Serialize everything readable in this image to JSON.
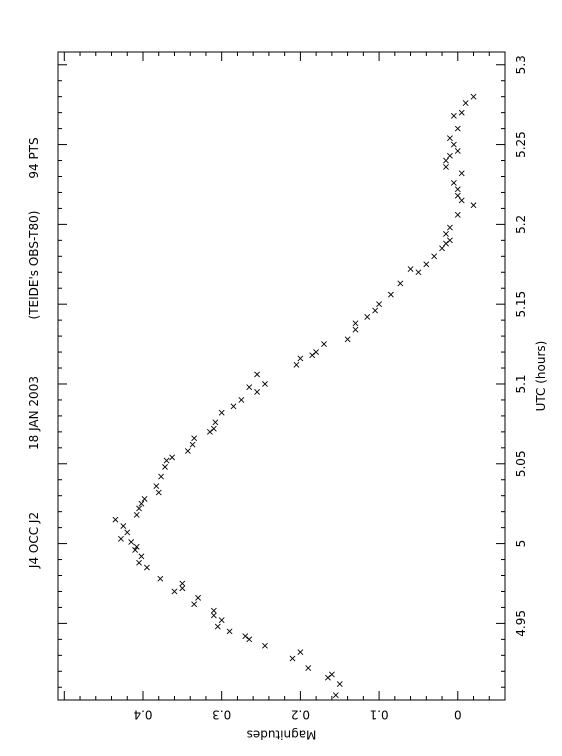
{
  "chart_data": {
    "type": "scatter",
    "orientation": "rotated-90",
    "header_labels": [
      "J4 OCC J2",
      "18 JAN 2003",
      "(TEIDE's OBS-T80)",
      "94 PTS"
    ],
    "xlabel": "UTC (hours)",
    "ylabel": "Magnitudes",
    "x_range": [
      4.902,
      5.308
    ],
    "y_range": [
      0.508,
      -0.06
    ],
    "x_ticks": [
      "4.95",
      "5",
      "5.05",
      "5.1",
      "5.15",
      "5.2",
      "5.25",
      "5.3"
    ],
    "y_ticks": [
      "0.4",
      "0.3",
      "0.2",
      "0.1",
      "0"
    ],
    "x_tick_values": [
      4.95,
      5.0,
      5.05,
      5.1,
      5.15,
      5.2,
      5.25,
      5.3
    ],
    "y_tick_values": [
      0.4,
      0.3,
      0.2,
      0.1,
      0.0
    ],
    "marker": "x",
    "grid": false,
    "series": [
      {
        "points": [
          [
            4.905,
            0.155
          ],
          [
            4.912,
            0.15
          ],
          [
            4.916,
            0.165
          ],
          [
            4.918,
            0.16
          ],
          [
            4.922,
            0.19
          ],
          [
            4.928,
            0.21
          ],
          [
            4.932,
            0.2
          ],
          [
            4.936,
            0.245
          ],
          [
            4.94,
            0.265
          ],
          [
            4.942,
            0.27
          ],
          [
            4.945,
            0.29
          ],
          [
            4.948,
            0.305
          ],
          [
            4.952,
            0.3
          ],
          [
            4.955,
            0.31
          ],
          [
            4.958,
            0.31
          ],
          [
            4.962,
            0.335
          ],
          [
            4.966,
            0.33
          ],
          [
            4.97,
            0.36
          ],
          [
            4.972,
            0.35
          ],
          [
            4.975,
            0.35
          ],
          [
            4.978,
            0.378
          ],
          [
            4.985,
            0.395
          ],
          [
            4.988,
            0.405
          ],
          [
            4.992,
            0.402
          ],
          [
            4.996,
            0.41
          ],
          [
            4.998,
            0.408
          ],
          [
            5.001,
            0.415
          ],
          [
            5.003,
            0.428
          ],
          [
            5.007,
            0.42
          ],
          [
            5.011,
            0.425
          ],
          [
            5.015,
            0.435
          ],
          [
            5.018,
            0.408
          ],
          [
            5.022,
            0.405
          ],
          [
            5.025,
            0.402
          ],
          [
            5.028,
            0.398
          ],
          [
            5.032,
            0.38
          ],
          [
            5.036,
            0.383
          ],
          [
            5.042,
            0.377
          ],
          [
            5.048,
            0.372
          ],
          [
            5.052,
            0.37
          ],
          [
            5.054,
            0.363
          ],
          [
            5.058,
            0.343
          ],
          [
            5.062,
            0.337
          ],
          [
            5.066,
            0.335
          ],
          [
            5.07,
            0.315
          ],
          [
            5.072,
            0.31
          ],
          [
            5.076,
            0.308
          ],
          [
            5.082,
            0.3
          ],
          [
            5.086,
            0.285
          ],
          [
            5.09,
            0.275
          ],
          [
            5.095,
            0.255
          ],
          [
            5.098,
            0.265
          ],
          [
            5.1,
            0.245
          ],
          [
            5.106,
            0.255
          ],
          [
            5.112,
            0.205
          ],
          [
            5.116,
            0.2
          ],
          [
            5.118,
            0.185
          ],
          [
            5.12,
            0.18
          ],
          [
            5.125,
            0.17
          ],
          [
            5.128,
            0.14
          ],
          [
            5.134,
            0.13
          ],
          [
            5.138,
            0.13
          ],
          [
            5.142,
            0.115
          ],
          [
            5.146,
            0.105
          ],
          [
            5.15,
            0.1
          ],
          [
            5.156,
            0.085
          ],
          [
            5.163,
            0.073
          ],
          [
            5.17,
            0.05
          ],
          [
            5.172,
            0.06
          ],
          [
            5.175,
            0.04
          ],
          [
            5.18,
            0.03
          ],
          [
            5.185,
            0.02
          ],
          [
            5.188,
            0.015
          ],
          [
            5.19,
            0.01
          ],
          [
            5.194,
            0.015
          ],
          [
            5.198,
            0.01
          ],
          [
            5.206,
            0.0
          ],
          [
            5.212,
            -0.02
          ],
          [
            5.215,
            -0.005
          ],
          [
            5.218,
            0.0
          ],
          [
            5.222,
            0.0
          ],
          [
            5.226,
            0.005
          ],
          [
            5.232,
            -0.005
          ],
          [
            5.236,
            0.015
          ],
          [
            5.24,
            0.015
          ],
          [
            5.243,
            0.01
          ],
          [
            5.246,
            0.0
          ],
          [
            5.25,
            0.005
          ],
          [
            5.254,
            0.01
          ],
          [
            5.26,
            0.0
          ],
          [
            5.268,
            0.005
          ],
          [
            5.27,
            -0.005
          ],
          [
            5.276,
            -0.01
          ],
          [
            5.28,
            -0.02
          ]
        ]
      }
    ]
  }
}
